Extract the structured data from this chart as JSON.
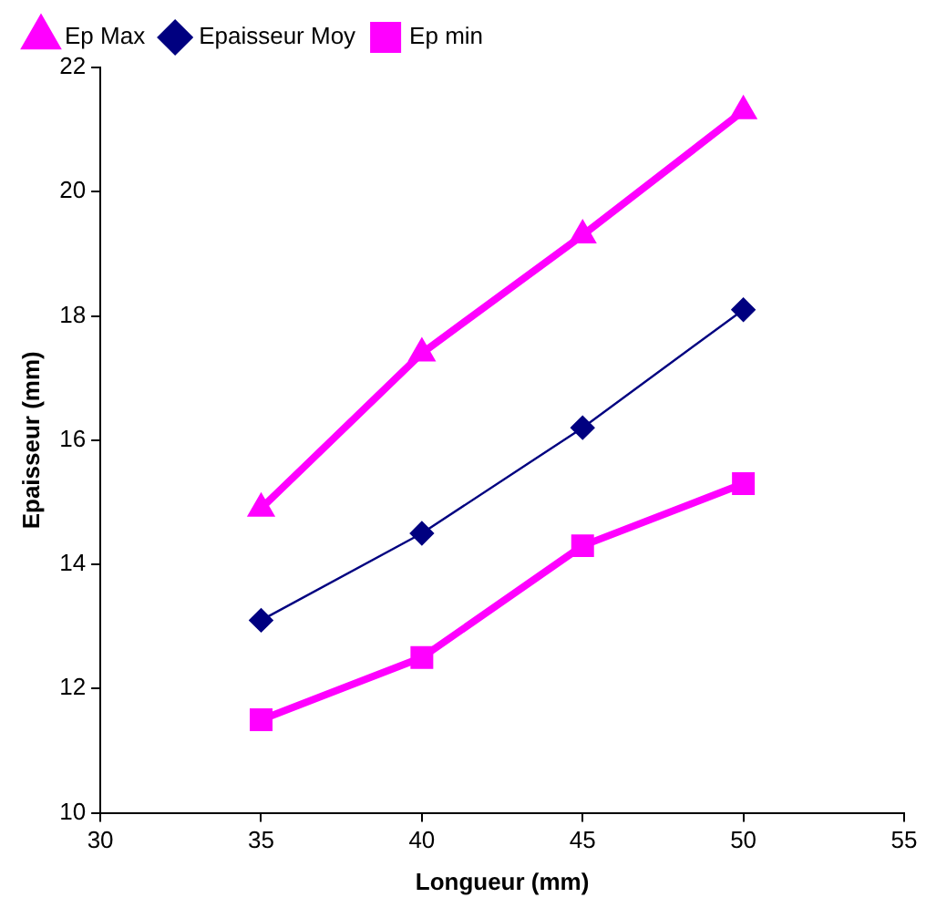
{
  "chart_data": {
    "type": "line",
    "xlabel": "Longueur (mm)",
    "ylabel": "Epaisseur (mm)",
    "x": [
      35,
      40,
      45,
      50
    ],
    "series": [
      {
        "name": "Ep Max",
        "color": "#ff00ff",
        "marker": "triangle",
        "values": [
          14.9,
          17.4,
          19.3,
          21.3
        ]
      },
      {
        "name": "Epaisseur Moy",
        "color": "#000080",
        "marker": "diamond",
        "values": [
          13.1,
          14.5,
          16.2,
          18.1
        ]
      },
      {
        "name": "Ep min",
        "color": "#ff00ff",
        "marker": "square",
        "values": [
          11.5,
          12.5,
          14.3,
          15.3
        ]
      }
    ],
    "xlim": [
      30,
      55
    ],
    "xticks": [
      30,
      35,
      40,
      45,
      50,
      55
    ],
    "ylim": [
      10,
      22
    ],
    "yticks": [
      10,
      12,
      14,
      16,
      18,
      20,
      22
    ],
    "grid": false,
    "legend": "top left"
  }
}
